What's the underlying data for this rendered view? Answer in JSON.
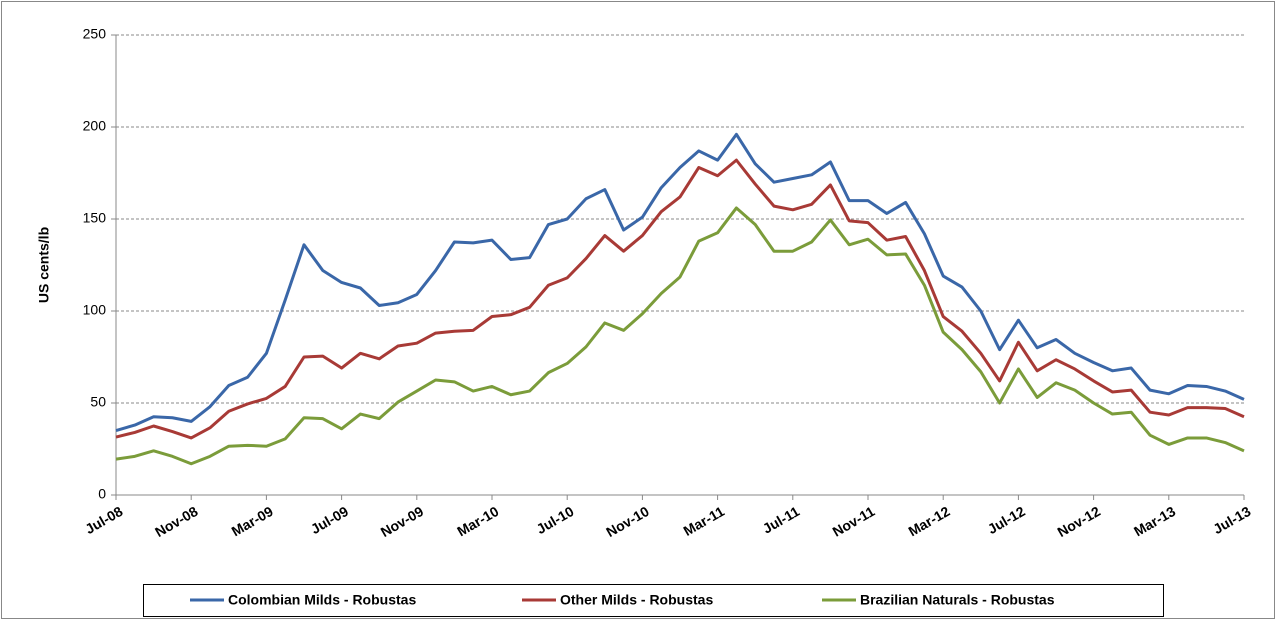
{
  "chart_data": {
    "type": "line",
    "y_label": "US cents/lb",
    "categories": [
      "Jul-08",
      null,
      null,
      null,
      "Nov-08",
      null,
      null,
      null,
      "Mar-09",
      null,
      null,
      null,
      "Jul-09",
      null,
      null,
      null,
      "Nov-09",
      null,
      null,
      null,
      "Mar-10",
      null,
      null,
      null,
      "Jul-10",
      null,
      null,
      null,
      "Nov-10",
      null,
      null,
      null,
      "Mar-11",
      null,
      null,
      null,
      "Jul-11",
      null,
      null,
      null,
      "Nov-11",
      null,
      null,
      null,
      "Mar-12",
      null,
      null,
      null,
      "Jul-12",
      null,
      null,
      null,
      "Nov-12",
      null,
      null,
      null,
      "Mar-13",
      null,
      null,
      null,
      "Jul-13"
    ],
    "series": [
      {
        "name": "Colombian Milds - Robustas",
        "color": "#3a67a8",
        "values": [
          35,
          38,
          42.5,
          42,
          40,
          48,
          59.5,
          64,
          77,
          106,
          136,
          122,
          115.5,
          112.5,
          103,
          104.5,
          109,
          122,
          137.5,
          137,
          138.5,
          128,
          129,
          147,
          150,
          161,
          166,
          144,
          151,
          167,
          178,
          187,
          182,
          196,
          180,
          170,
          172,
          174,
          181,
          160,
          160,
          153,
          159,
          142,
          119,
          113,
          100,
          79,
          95,
          80,
          84.5,
          77,
          72,
          67.5,
          69,
          57,
          55,
          59.5,
          59,
          56.5,
          52
        ]
      },
      {
        "name": "Other Milds - Robustas",
        "color": "#a83a36",
        "values": [
          31.5,
          34,
          37.5,
          34.5,
          31,
          36.5,
          45.5,
          49.5,
          52.5,
          59,
          75,
          75.5,
          69,
          77,
          74,
          81,
          82.5,
          88,
          89,
          89.5,
          97,
          98,
          102,
          114,
          118,
          128.5,
          141,
          132.5,
          141,
          154,
          162,
          178,
          173.5,
          182,
          169,
          157,
          155,
          158,
          168.5,
          149,
          148,
          138.5,
          140.5,
          122,
          97,
          89,
          77,
          62,
          83,
          67.5,
          73.5,
          68.5,
          62,
          56,
          57,
          45,
          43.5,
          47.5,
          47.5,
          47,
          42.5
        ]
      },
      {
        "name": "Brazilian Naturals - Robustas",
        "color": "#7b9c3a",
        "values": [
          19.5,
          21,
          24,
          21,
          17,
          21,
          26.5,
          27,
          26.5,
          30.5,
          42,
          41.5,
          36,
          44,
          41.5,
          50.5,
          56.5,
          62.5,
          61.5,
          56.5,
          59,
          54.5,
          56.5,
          66.5,
          71.5,
          80.5,
          93.5,
          89.5,
          98.5,
          109.5,
          118.5,
          138,
          142.5,
          156,
          147,
          132.5,
          132.5,
          137.5,
          149.5,
          136,
          139,
          130.5,
          131,
          114,
          88.5,
          79,
          67,
          50,
          68.5,
          53,
          61,
          57,
          50,
          44,
          45,
          32.5,
          27.5,
          31,
          31,
          28.5,
          24
        ]
      }
    ],
    "ylim": [
      0,
      250
    ],
    "yticks": [
      0,
      50,
      100,
      150,
      200,
      250
    ],
    "grid": true,
    "legend": "bottom"
  }
}
